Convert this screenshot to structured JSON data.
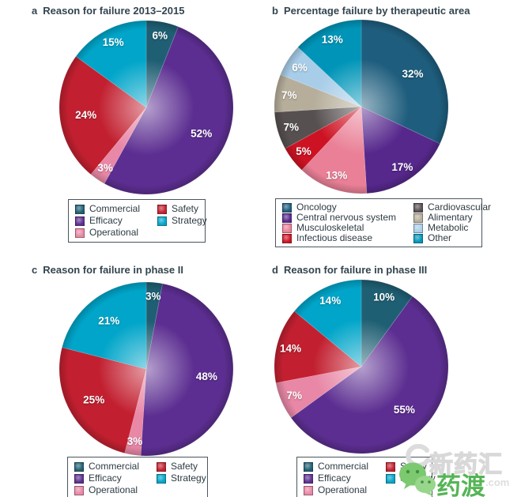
{
  "page": {
    "background": "#ffffff"
  },
  "chart_data": [
    {
      "panel_letter": "a",
      "title": "Reason for failure 2013–2015",
      "type": "pie",
      "unit": "%",
      "start_angle_deg": 0,
      "direction": "clockwise",
      "legend_position": "bottom",
      "categories": [
        "Commercial",
        "Efficacy",
        "Operational",
        "Safety",
        "Strategy"
      ],
      "values": [
        6,
        52,
        3,
        24,
        15
      ],
      "colors": [
        "#1f5f73",
        "#5c2e91",
        "#e887a6",
        "#c22030",
        "#00a5c9"
      ]
    },
    {
      "panel_letter": "b",
      "title": "Percentage failure by therapeutic area",
      "type": "pie",
      "unit": "%",
      "start_angle_deg": 0,
      "direction": "clockwise",
      "legend_position": "bottom",
      "categories": [
        "Oncology",
        "Central nervous system",
        "Musculoskeletal",
        "Infectious disease",
        "Cardiovascular",
        "Alimentary",
        "Metabolic",
        "Other"
      ],
      "values": [
        32,
        17,
        13,
        5,
        7,
        7,
        6,
        13
      ],
      "colors": [
        "#1e5d7d",
        "#56288c",
        "#ea8097",
        "#cd1323",
        "#575051",
        "#b6ae9b",
        "#a8cde8",
        "#0095b8"
      ]
    },
    {
      "panel_letter": "c",
      "title": "Reason for failure in phase II",
      "type": "pie",
      "unit": "%",
      "start_angle_deg": 0,
      "direction": "clockwise",
      "legend_position": "bottom",
      "categories": [
        "Commercial",
        "Efficacy",
        "Operational",
        "Safety",
        "Strategy"
      ],
      "values": [
        3,
        48,
        3,
        25,
        21
      ],
      "colors": [
        "#1f5f73",
        "#5c2e91",
        "#e887a6",
        "#c22030",
        "#00a5c9"
      ]
    },
    {
      "panel_letter": "d",
      "title": "Reason for failure in phase III",
      "type": "pie",
      "unit": "%",
      "start_angle_deg": 0,
      "direction": "clockwise",
      "legend_position": "bottom",
      "categories": [
        "Commercial",
        "Efficacy",
        "Operational",
        "Safety",
        "Strategy"
      ],
      "values": [
        10,
        55,
        7,
        14,
        14
      ],
      "colors": [
        "#1f5f73",
        "#5c2e91",
        "#e887a6",
        "#c22030",
        "#00a5c9"
      ]
    }
  ],
  "watermark": {
    "brand_text": "新药汇",
    "brand_color": "#eeeeee",
    "logo_text": "药渡",
    "logo_color": "#55b455",
    "suffix_text": ".com",
    "icon": "wechat-bubbles-icon",
    "icon_color": "#7cc96f"
  }
}
